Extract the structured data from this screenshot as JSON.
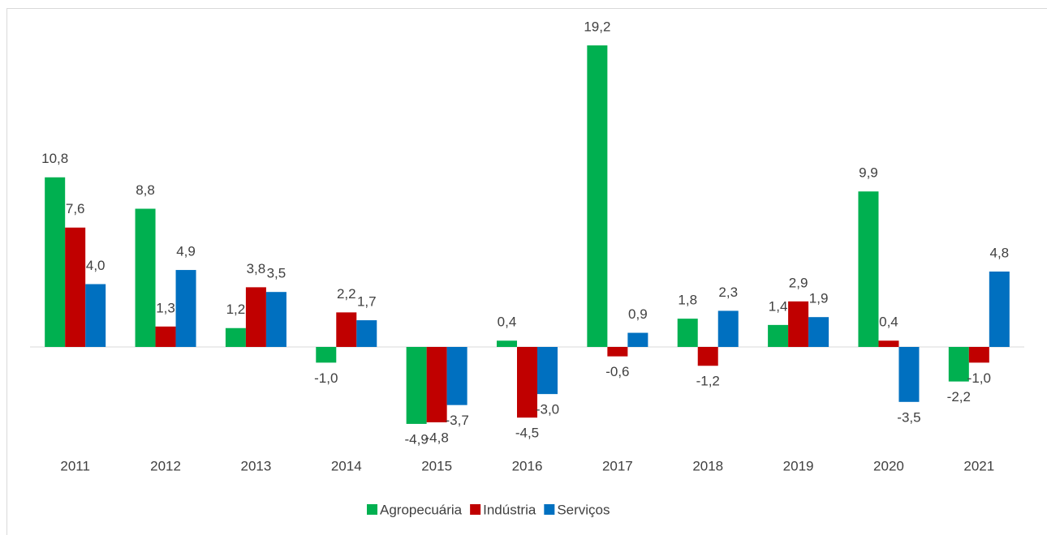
{
  "chart_data": {
    "type": "bar",
    "categories": [
      "2011",
      "2012",
      "2013",
      "2014",
      "2015",
      "2016",
      "2017",
      "2018",
      "2019",
      "2020",
      "2021"
    ],
    "series": [
      {
        "name": "Agropecuária",
        "color": "#00b050",
        "values": [
          10.8,
          8.8,
          1.2,
          -1.0,
          -4.9,
          0.4,
          19.2,
          1.8,
          1.4,
          9.9,
          -2.2
        ],
        "value_labels": [
          "10,8",
          "8,8",
          "1,2",
          "-1,0",
          "-4,9",
          "0,4",
          "19,2",
          "1,8",
          "1,4",
          "9,9",
          "-2,2"
        ]
      },
      {
        "name": "Indústria",
        "color": "#c00000",
        "values": [
          7.6,
          1.3,
          3.8,
          2.2,
          -4.8,
          -4.5,
          -0.6,
          -1.2,
          2.9,
          0.4,
          -1.0
        ],
        "value_labels": [
          "7,6",
          "1,3",
          "3,8",
          "2,2",
          "-4,8",
          "-4,5",
          "-0,6",
          "-1,2",
          "2,9",
          "0,4",
          "-1,0"
        ]
      },
      {
        "name": "Serviços",
        "color": "#0070c0",
        "values": [
          4.0,
          4.9,
          3.5,
          1.7,
          -3.7,
          -3.0,
          0.9,
          2.3,
          1.9,
          -3.5,
          4.8
        ],
        "value_labels": [
          "4,0",
          "4,9",
          "3,5",
          "1,7",
          "-3,7",
          "-3,0",
          "0,9",
          "2,3",
          "1,9",
          "-3,5",
          "4,8"
        ]
      }
    ],
    "legend": "bottom"
  }
}
